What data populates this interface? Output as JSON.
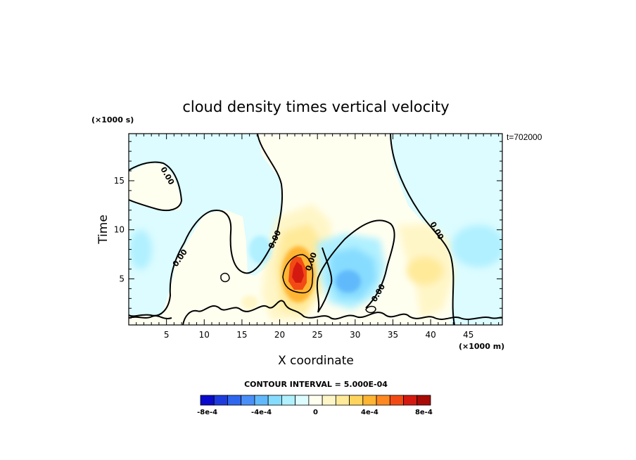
{
  "chart_data": {
    "type": "heatmap",
    "title": "cloud density times vertical velocity",
    "xlabel": "X coordinate",
    "ylabel": "Time",
    "x_units": "(×1000 m)",
    "y_units": "(×1000 s)",
    "time_stamp": "t=702000",
    "xlim": [
      0,
      49.5
    ],
    "ylim": [
      0.3,
      19.8
    ],
    "x_ticks": [
      5,
      10,
      15,
      20,
      25,
      30,
      35,
      40,
      45
    ],
    "y_ticks": [
      5,
      10,
      15
    ],
    "contour_interval_text": "CONTOUR INTERVAL = 5.000E-04",
    "contour_line_label": "0.00",
    "colorbar": {
      "colors": [
        "#0a0acc",
        "#1e3cde",
        "#2f66ee",
        "#4a8ff8",
        "#61b9fb",
        "#86dcff",
        "#b0f0ff",
        "#dcfcff",
        "#fffff0",
        "#fff6c8",
        "#ffea9a",
        "#ffd45c",
        "#ffb432",
        "#ff8822",
        "#f24a14",
        "#d41a10",
        "#a80a06"
      ],
      "tick_labels": [
        "-8e-4",
        "-4e-4",
        "0",
        "4e-4",
        "8e-4"
      ],
      "tick_values": [
        -0.0008,
        -0.0004,
        0,
        0.0004,
        0.0008
      ]
    },
    "regions": [
      {
        "level": "weak negative",
        "x": [
          0,
          49.5
        ],
        "y": [
          0.3,
          19.8
        ]
      },
      {
        "level": "weak positive",
        "x": [
          17,
          34
        ],
        "y": [
          0.5,
          19.8
        ]
      },
      {
        "level": "weak positive",
        "x": [
          0,
          7
        ],
        "y": [
          13,
          16.8
        ]
      },
      {
        "level": "weak positive",
        "x": [
          15,
          20
        ],
        "y": [
          6.5,
          10.5
        ]
      },
      {
        "level": "weak positive",
        "x": [
          35,
          42
        ],
        "y": [
          1,
          9
        ]
      },
      {
        "level": "positive",
        "x": [
          19,
          26
        ],
        "y": [
          2,
          10
        ]
      },
      {
        "level": "strong positive",
        "x": [
          21,
          24
        ],
        "y": [
          4,
          7
        ]
      },
      {
        "level": "maximum",
        "x": [
          22,
          23.5
        ],
        "y": [
          4.5,
          6.5
        ],
        "value": 0.00085
      },
      {
        "level": "negative",
        "x": [
          27,
          34
        ],
        "y": [
          2.5,
          8
        ],
        "value": -0.0003
      },
      {
        "level": "weak negative",
        "x": [
          16,
          19
        ],
        "y": [
          6,
          9
        ]
      },
      {
        "level": "weak negative",
        "x": [
          41,
          47
        ],
        "y": [
          4,
          10
        ]
      }
    ]
  }
}
